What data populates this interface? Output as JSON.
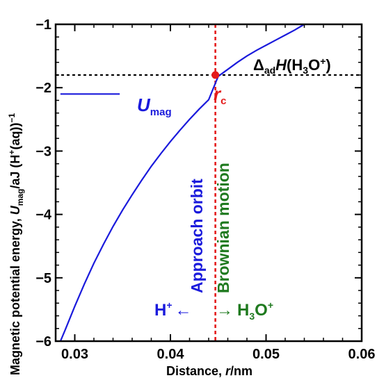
{
  "chart_data": {
    "type": "line",
    "xlabel": "Distance, r/nm",
    "ylabel": "Magnetic potential energy, Umag/aJ (H+(aq))−1",
    "xlim": [
      0.028,
      0.06
    ],
    "ylim": [
      -6,
      -1
    ],
    "xticks": [
      "0.03",
      "0.04",
      "0.05",
      "0.06"
    ],
    "yticks": [
      "−1",
      "−2",
      "−3",
      "−4",
      "−5",
      "−6"
    ],
    "series": [
      {
        "name": "Umag",
        "color": "#1a1adc",
        "x": [
          0.0285,
          0.029,
          0.03,
          0.031,
          0.032,
          0.033,
          0.034,
          0.035,
          0.036,
          0.037,
          0.038,
          0.039,
          0.04,
          0.041,
          0.042,
          0.043,
          0.044,
          0.045,
          0.046,
          0.047,
          0.048,
          0.049,
          0.05,
          0.051,
          0.052,
          0.053,
          0.054
        ],
        "y": [
          -6.0,
          -5.82,
          -5.45,
          -5.1,
          -4.77,
          -4.47,
          -4.19,
          -3.93,
          -3.69,
          -3.46,
          -3.24,
          -3.04,
          -2.85,
          -2.67,
          -2.5,
          -2.34,
          -2.19,
          -1.82,
          -1.71,
          -1.6,
          -1.5,
          -1.41,
          -1.33,
          -1.25,
          -1.17,
          -1.09,
          -1.0
        ]
      }
    ],
    "reference_lines": {
      "horizontal_y": -1.8,
      "vertical_x": 0.0447,
      "horizontal_color": "#000000",
      "vertical_color": "#e41a1a"
    },
    "rc_point": {
      "x": 0.0447,
      "y": -1.8,
      "color": "#e41a1a"
    },
    "legend_sample": {
      "x": [
        0.0285,
        0.0347
      ],
      "y": -2.1
    }
  },
  "labels": {
    "series_label_main": "U",
    "series_label_sub": "mag",
    "rc_main": "r",
    "rc_sub": "c",
    "delta_main": "Δ",
    "delta_sub": "ad",
    "delta_H": "H",
    "delta_rest_open": "(H",
    "delta_sub3": "3",
    "delta_O": "O",
    "delta_sup": "+",
    "delta_close": ")",
    "approach": "Approach orbit",
    "brownian": "Brownian motion",
    "hplus_H": "H",
    "hplus_sup": "+",
    "hplus_arrow": "←",
    "h3o_arrow": "→",
    "h3o_H": "H",
    "h3o_sub": "3",
    "h3o_O": "O",
    "h3o_sup": "+",
    "xlabel_main": "Distance, ",
    "xlabel_r": "r",
    "xlabel_unit": "/nm",
    "ylabel_p1": "Magnetic potential energy, ",
    "ylabel_U": "U",
    "ylabel_mag": "mag",
    "ylabel_p2": "/aJ (H",
    "ylabel_plus": "+",
    "ylabel_p3": "(aq))",
    "ylabel_sup": "−1"
  },
  "colors": {
    "blue": "#1a1adc",
    "green": "#1f7a1f",
    "red": "#e41a1a"
  }
}
